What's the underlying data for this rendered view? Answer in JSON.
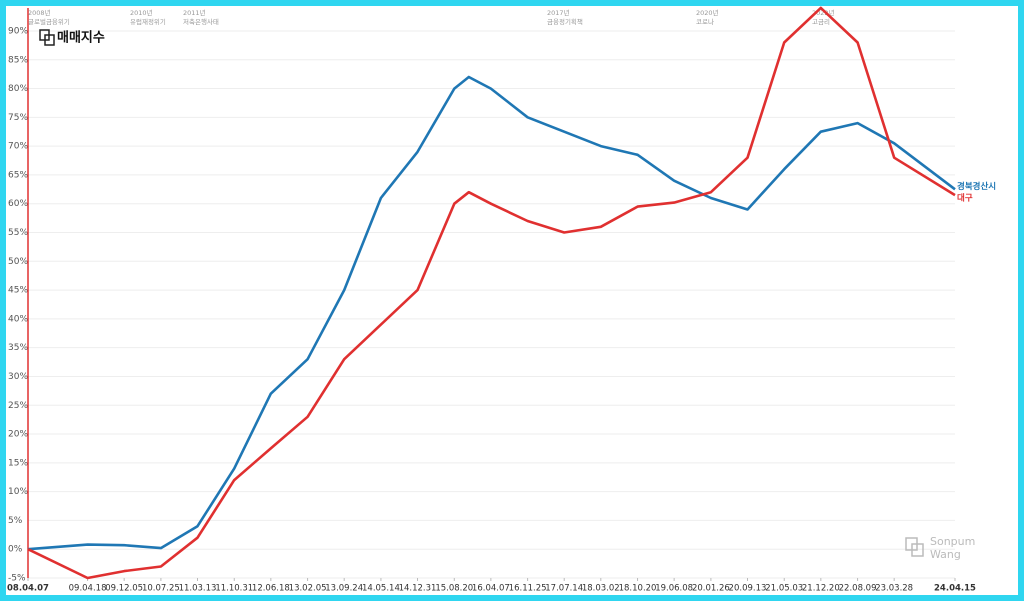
{
  "chart_data": {
    "type": "line",
    "logo": "매매지수",
    "watermark": [
      "Sonpum",
      "Wang"
    ],
    "annotations": [
      [
        "2008년",
        "글로벌금융위기"
      ],
      [
        "2010년",
        "유럽재정위기"
      ],
      [
        "2011년",
        "저축은행사태"
      ],
      [
        "2017년",
        "금융정기획책"
      ],
      [
        "2020년",
        "코로나"
      ],
      [
        "2022년",
        "고금리"
      ]
    ],
    "x": [
      "08.04.07",
      "09.04.18",
      "09.12.05",
      "10.07.25",
      "11.03.13",
      "11.10.31",
      "12.06.18",
      "13.02.05",
      "13.09.24",
      "14.05.14",
      "14.12.31",
      "15.08.20",
      "15.11.20",
      "16.04.07",
      "16.11.25",
      "17.07.14",
      "18.03.02",
      "18.10.20",
      "19.06.08",
      "20.01.26",
      "20.09.13",
      "21.05.03",
      "21.12.20",
      "22.08.09",
      "23.03.28",
      "24.04.15"
    ],
    "series": [
      {
        "name": "경북경산시",
        "color": "#1f77b4",
        "values": [
          0,
          0.8,
          0.7,
          0.2,
          4,
          14,
          27,
          33,
          45,
          61,
          69,
          80,
          82,
          80,
          75,
          72.5,
          70,
          68.5,
          64,
          61,
          59,
          66,
          72.5,
          74,
          70.5,
          62.5
        ]
      },
      {
        "name": "대구",
        "color": "#e03030",
        "values": [
          0,
          -5,
          -3.8,
          -3,
          2,
          12,
          17.5,
          23,
          33,
          39,
          45,
          60,
          62,
          60,
          57,
          55,
          56,
          59.5,
          60.2,
          62,
          68,
          88,
          94,
          88,
          68,
          61.5
        ]
      }
    ],
    "xlim": [
      "08.04.07",
      "24.04.15"
    ],
    "xticks": [
      "08.04.07",
      "09.04.18",
      "09.12.05",
      "10.07.25",
      "11.03.13",
      "11.10.31",
      "12.06.18",
      "13.02.05",
      "13.09.24",
      "14.05.14",
      "14.12.31",
      "15.08.20",
      "16.04.07",
      "16.11.25",
      "17.07.14",
      "18.03.02",
      "18.10.20",
      "19.06.08",
      "20.01.26",
      "20.09.13",
      "21.05.03",
      "21.12.20",
      "22.08.09",
      "23.03.28",
      "24.04.15"
    ],
    "ylim": [
      -5,
      93
    ],
    "yticks": [
      {
        "value": -5,
        "label": "-5%"
      },
      {
        "value": 0,
        "label": "0%"
      },
      {
        "value": 5,
        "label": "5%"
      },
      {
        "value": 10,
        "label": "10%"
      },
      {
        "value": 15,
        "label": "15%"
      },
      {
        "value": 20,
        "label": "20%"
      },
      {
        "value": 25,
        "label": "25%"
      },
      {
        "value": 30,
        "label": "30%"
      },
      {
        "value": 35,
        "label": "35%"
      },
      {
        "value": 40,
        "label": "40%"
      },
      {
        "value": 45,
        "label": "45%"
      },
      {
        "value": 50,
        "label": "50%"
      },
      {
        "value": 55,
        "label": "55%"
      },
      {
        "value": 60,
        "label": "60%"
      },
      {
        "value": 65,
        "label": "65%"
      },
      {
        "value": 70,
        "label": "70%"
      },
      {
        "value": 75,
        "label": "75%"
      },
      {
        "value": 80,
        "label": "80%"
      },
      {
        "value": 85,
        "label": "85%"
      },
      {
        "value": 90,
        "label": "90%"
      }
    ],
    "grid": true
  }
}
